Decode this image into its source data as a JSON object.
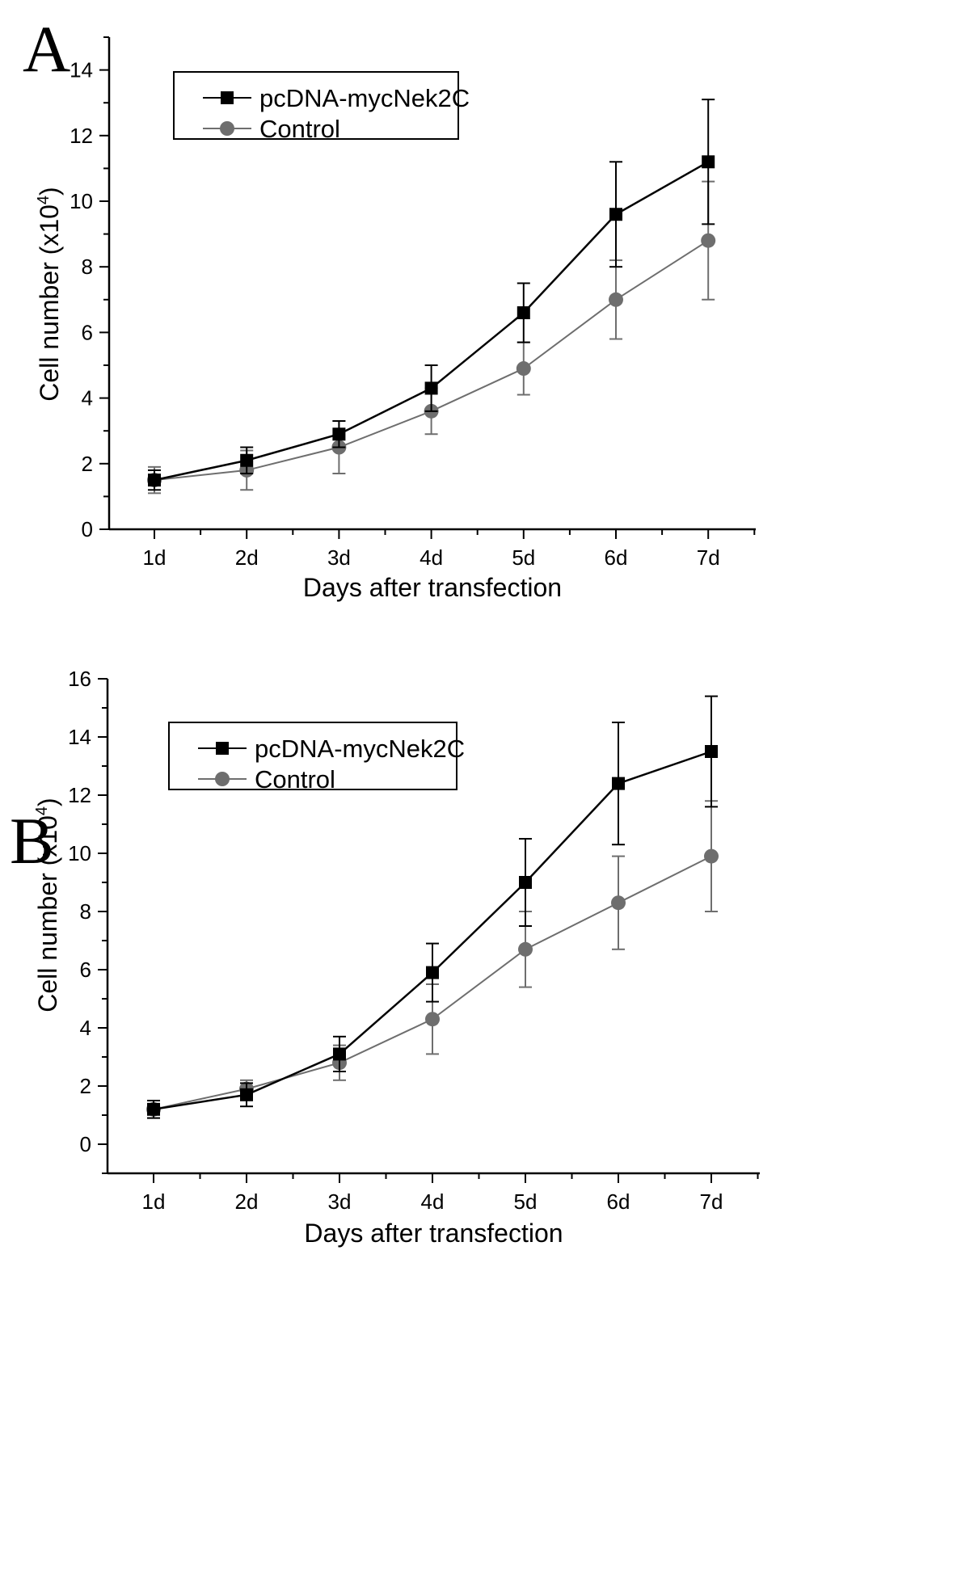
{
  "panels": [
    {
      "letter": "A",
      "chart_data": {
        "type": "line",
        "categories": [
          "1d",
          "2d",
          "3d",
          "4d",
          "5d",
          "6d",
          "7d"
        ],
        "xlabel": "Days after transfection",
        "ylabel_main": "Cell number",
        "ylabel_unit_prefix": "(x10",
        "ylabel_unit_exp": "4",
        "ylabel_unit_suffix": ")",
        "ylim": [
          0,
          15
        ],
        "yticks": [
          0,
          2,
          4,
          6,
          8,
          10,
          12,
          14
        ],
        "legend_position": "top-left",
        "series": [
          {
            "name": "pcDNA-mycNek2C",
            "marker": "square",
            "color": "#000000",
            "values": [
              1.5,
              2.1,
              2.9,
              4.3,
              6.6,
              9.6,
              11.2
            ],
            "errors": [
              0.3,
              0.4,
              0.4,
              0.7,
              0.9,
              1.6,
              1.9
            ]
          },
          {
            "name": "Control",
            "marker": "circle",
            "color": "#6e6e6e",
            "values": [
              1.5,
              1.8,
              2.5,
              3.6,
              4.9,
              7.0,
              8.8
            ],
            "errors": [
              0.4,
              0.6,
              0.8,
              0.7,
              0.8,
              1.2,
              1.8
            ]
          }
        ]
      }
    },
    {
      "letter": "B",
      "chart_data": {
        "type": "line",
        "categories": [
          "1d",
          "2d",
          "3d",
          "4d",
          "5d",
          "6d",
          "7d"
        ],
        "xlabel": "Days after transfection",
        "ylabel_main": "Cell number",
        "ylabel_unit_prefix": "(x10",
        "ylabel_unit_exp": "4",
        "ylabel_unit_suffix": ")",
        "ylim": [
          -1,
          16
        ],
        "yticks": [
          0,
          2,
          4,
          6,
          8,
          10,
          12,
          14,
          16
        ],
        "legend_position": "top-left",
        "series": [
          {
            "name": "pcDNA-mycNek2C",
            "marker": "square",
            "color": "#000000",
            "values": [
              1.2,
              1.7,
              3.1,
              5.9,
              9.0,
              12.4,
              13.5
            ],
            "errors": [
              0.3,
              0.4,
              0.6,
              1.0,
              1.5,
              2.1,
              1.9
            ]
          },
          {
            "name": "Control",
            "marker": "circle",
            "color": "#6e6e6e",
            "values": [
              1.2,
              1.9,
              2.8,
              4.3,
              6.7,
              8.3,
              9.9
            ],
            "errors": [
              0.3,
              0.3,
              0.6,
              1.2,
              1.3,
              1.6,
              1.9
            ]
          }
        ]
      }
    }
  ]
}
